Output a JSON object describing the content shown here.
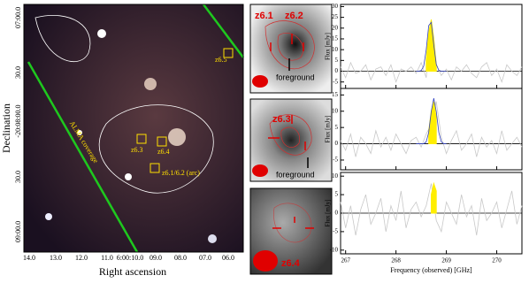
{
  "image_panel": {
    "y_label": "Declination",
    "x_label": "Right ascension",
    "yticks": [
      "07:00.0",
      "30.0",
      "-20:08:00.0",
      "30.0",
      "09:00.0"
    ],
    "xticks": [
      "14.0",
      "13.0",
      "12.0",
      "11.0",
      "6:00:10.0",
      "09.0",
      "08.0",
      "07.0",
      "06.0"
    ],
    "labels": [
      "z6.5",
      "ALMA coverage",
      "z6.3",
      "z6.4",
      "z6.1/6.2 (arc)"
    ]
  },
  "stamps": [
    {
      "labels": [
        "z6.1",
        "z6.2",
        "foreground"
      ]
    },
    {
      "labels": [
        "z6.3",
        "foreground"
      ]
    },
    {
      "labels": [
        "z6.4"
      ]
    }
  ],
  "chart_data": [
    {
      "type": "line",
      "y_label": "Flux [mJy]",
      "xlim": [
        266.9,
        270.5
      ],
      "xticks": [
        267,
        268,
        269,
        270
      ],
      "ylim": [
        -8,
        31
      ],
      "yticks": [
        -5,
        0,
        5,
        10,
        15,
        20,
        25,
        30
      ],
      "series": [
        {
          "color": "#c8c8c8",
          "x": [
            266.9,
            267.0,
            267.1,
            267.2,
            267.3,
            267.4,
            267.5,
            267.6,
            267.7,
            267.8,
            267.9,
            268.0,
            268.1,
            268.2,
            268.3,
            268.4,
            268.5,
            268.6,
            268.7,
            268.8,
            268.9,
            269.0,
            269.1,
            269.2,
            269.3,
            269.4,
            269.5,
            269.6,
            269.7,
            269.8,
            269.9,
            270.0,
            270.1,
            270.2,
            270.3,
            270.4,
            270.5
          ],
          "values": [
            2,
            -3,
            4,
            -1,
            0,
            3,
            -4,
            1,
            2,
            -2,
            3,
            -5,
            1,
            0,
            2,
            -1,
            4,
            -3,
            24,
            3,
            -2,
            1,
            -4,
            2,
            0,
            3,
            -1,
            -3,
            2,
            4,
            -2,
            1,
            -5,
            3,
            0,
            -2,
            2
          ]
        },
        {
          "color": "#ffee00",
          "x": [
            268.6,
            268.65,
            268.7,
            268.75,
            268.8
          ],
          "values": [
            5,
            18,
            24,
            15,
            3
          ]
        },
        {
          "color": "#3040c0",
          "x": [
            268.4,
            268.45,
            268.5,
            268.55,
            268.6,
            268.65,
            268.7,
            268.75,
            268.8,
            268.85,
            268.9,
            268.95,
            269.0
          ],
          "values": [
            0,
            0,
            0.3,
            2.3,
            9.9,
            21.2,
            22.7,
            12.2,
            3.2,
            0.4,
            0,
            0,
            0
          ]
        }
      ]
    },
    {
      "type": "line",
      "y_label": "Flux [mJy]",
      "xlim": [
        266.9,
        270.5
      ],
      "xticks": [
        267,
        268,
        269,
        270
      ],
      "ylim": [
        -8,
        17
      ],
      "yticks": [
        -5,
        0,
        5,
        10,
        15
      ],
      "series": [
        {
          "color": "#c8c8c8",
          "x": [
            266.9,
            267.0,
            267.1,
            267.2,
            267.3,
            267.4,
            267.5,
            267.6,
            267.7,
            267.8,
            267.9,
            268.0,
            268.1,
            268.2,
            268.3,
            268.4,
            268.5,
            268.6,
            268.7,
            268.8,
            268.9,
            269.0,
            269.1,
            269.2,
            269.3,
            269.4,
            269.5,
            269.6,
            269.7,
            269.8,
            269.9,
            270.0,
            270.1,
            270.2,
            270.3,
            270.4,
            270.5
          ],
          "values": [
            1,
            -2,
            3,
            -4,
            2,
            0,
            -3,
            4,
            -1,
            2,
            -2,
            3,
            0,
            -3,
            1,
            2,
            -1,
            3,
            6,
            13,
            2,
            -3,
            1,
            4,
            -2,
            0,
            3,
            -4,
            2,
            -1,
            1,
            -3,
            4,
            -2,
            0,
            2,
            -1
          ]
        },
        {
          "color": "#ffee00",
          "x": [
            268.65,
            268.7,
            268.75,
            268.8
          ],
          "values": [
            4,
            10,
            13,
            8
          ]
        },
        {
          "color": "#3040c0",
          "x": [
            268.4,
            268.45,
            268.5,
            268.55,
            268.6,
            268.65,
            268.7,
            268.75,
            268.8,
            268.85,
            268.9,
            268.95,
            269.0
          ],
          "values": [
            0,
            0,
            0,
            0,
            0.6,
            3.5,
            9.9,
            14,
            9.9,
            3.5,
            0.6,
            0,
            0
          ]
        }
      ]
    },
    {
      "type": "line",
      "y_label": "Flux [mJy]",
      "x_label": "Frequency (observed) [GHz]",
      "xlim": [
        266.9,
        270.5
      ],
      "xticks": [
        267,
        268,
        269,
        270
      ],
      "ylim": [
        -11,
        11
      ],
      "yticks": [
        -10,
        -5,
        0,
        5,
        10
      ],
      "series": [
        {
          "color": "#c8c8c8",
          "x": [
            266.9,
            267.0,
            267.1,
            267.2,
            267.3,
            267.4,
            267.5,
            267.6,
            267.7,
            267.8,
            267.9,
            268.0,
            268.1,
            268.2,
            268.3,
            268.4,
            268.5,
            268.6,
            268.7,
            268.8,
            268.9,
            269.0,
            269.1,
            269.2,
            269.3,
            269.4,
            269.5,
            269.6,
            269.7,
            269.8,
            269.9,
            270.0,
            270.1,
            270.2,
            270.3,
            270.4,
            270.5
          ],
          "values": [
            3,
            -4,
            2,
            -6,
            1,
            5,
            -3,
            0,
            4,
            -5,
            2,
            -2,
            6,
            -4,
            1,
            3,
            -1,
            2,
            8,
            -2,
            -5,
            3,
            0,
            -3,
            5,
            -1,
            2,
            -6,
            4,
            -2,
            0,
            3,
            -4,
            1,
            6,
            -3,
            2
          ]
        },
        {
          "color": "#ffee00",
          "x": [
            268.7,
            268.75,
            268.8
          ],
          "values": [
            5,
            8,
            6
          ]
        }
      ]
    }
  ]
}
